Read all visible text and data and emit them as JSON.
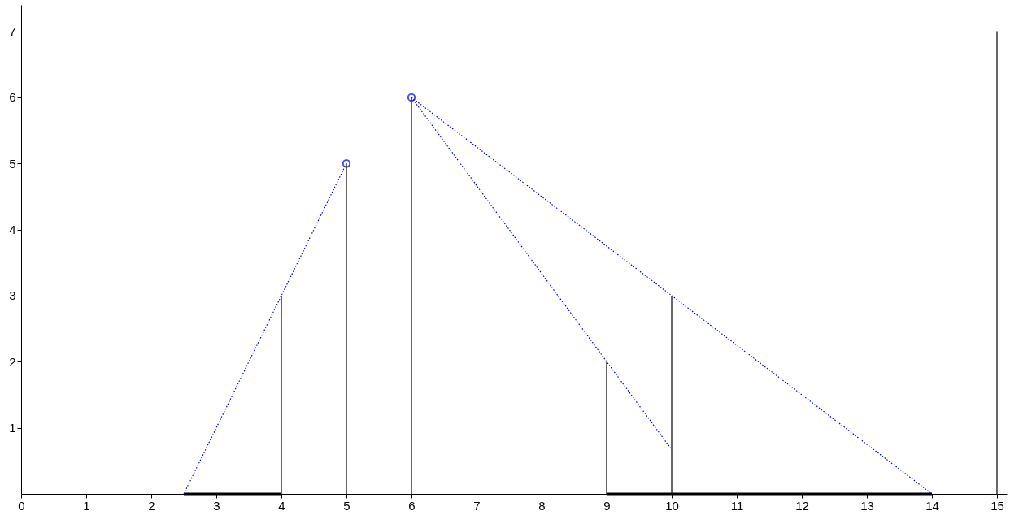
{
  "chart_data": {
    "type": "line",
    "xlim": [
      0,
      15.15
    ],
    "ylim": [
      0,
      7.4
    ],
    "xticks": [
      0,
      1,
      2,
      3,
      4,
      5,
      6,
      7,
      8,
      9,
      10,
      11,
      12,
      13,
      14,
      15
    ],
    "yticks": [
      1,
      2,
      3,
      4,
      5,
      6,
      7
    ],
    "grid": false,
    "series": [
      {
        "color": "#000000",
        "x": [
          4,
          4
        ],
        "values": [
          0,
          3
        ]
      },
      {
        "color": "#000000",
        "x": [
          5,
          5
        ],
        "values": [
          0,
          5
        ]
      },
      {
        "color": "#000000",
        "x": [
          6,
          6
        ],
        "values": [
          0,
          6
        ]
      },
      {
        "color": "#000000",
        "x": [
          9,
          9
        ],
        "values": [
          0,
          2
        ]
      },
      {
        "color": "#000000",
        "x": [
          10,
          10
        ],
        "values": [
          0,
          3
        ]
      },
      {
        "color": "#000000",
        "x": [
          15,
          15
        ],
        "values": [
          0,
          7
        ]
      },
      {
        "color": "#000000",
        "x": [
          2.5,
          4
        ],
        "values": [
          0,
          0
        ]
      },
      {
        "color": "#000000",
        "x": [
          9,
          14
        ],
        "values": [
          0,
          0
        ]
      },
      {
        "color": "#0000ff",
        "line_style": "dotted",
        "x": [
          2.5,
          5
        ],
        "values": [
          0,
          5
        ]
      },
      {
        "color": "#0000ff",
        "line_style": "dotted",
        "x": [
          6,
          10
        ],
        "values": [
          6,
          0.67
        ]
      },
      {
        "color": "#0000ff",
        "line_style": "dotted",
        "x": [
          6,
          14
        ],
        "values": [
          6,
          0
        ]
      },
      {
        "type": "scatter",
        "color": "#0000ff",
        "marker": "circle",
        "x": [
          5,
          6
        ],
        "values": [
          5,
          6
        ]
      }
    ]
  }
}
